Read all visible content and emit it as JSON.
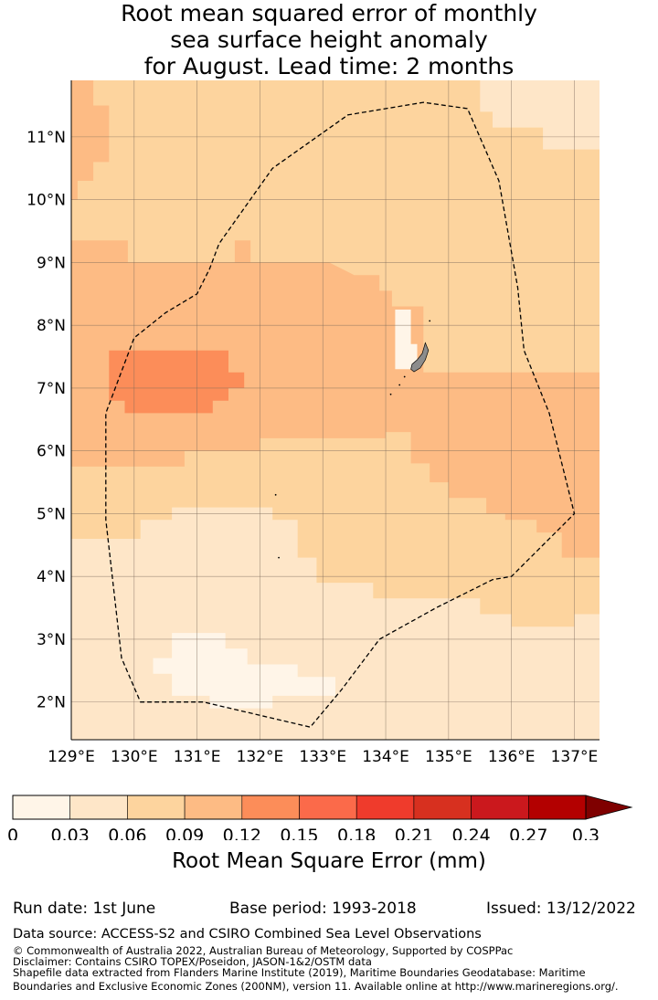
{
  "title_lines": [
    "Root mean squared error of monthly",
    "sea surface height anomaly",
    "for August. Lead time: 2 months"
  ],
  "map": {
    "lon_range": [
      129.0,
      137.4
    ],
    "lat_range": [
      1.4,
      11.9
    ],
    "lon_ticks": [
      {
        "value": 129,
        "label": "129°E"
      },
      {
        "value": 130,
        "label": "130°E"
      },
      {
        "value": 131,
        "label": "131°E"
      },
      {
        "value": 132,
        "label": "132°E"
      },
      {
        "value": 133,
        "label": "133°E"
      },
      {
        "value": 134,
        "label": "134°E"
      },
      {
        "value": 135,
        "label": "135°E"
      },
      {
        "value": 136,
        "label": "136°E"
      },
      {
        "value": 137,
        "label": "137°E"
      }
    ],
    "lat_ticks": [
      {
        "value": 11,
        "label": "11°N"
      },
      {
        "value": 10,
        "label": "10°N"
      },
      {
        "value": 9,
        "label": "9°N"
      },
      {
        "value": 8,
        "label": "8°N"
      },
      {
        "value": 7,
        "label": "7°N"
      },
      {
        "value": 6,
        "label": "6°N"
      },
      {
        "value": 5,
        "label": "5°N"
      },
      {
        "value": 4,
        "label": "4°N"
      },
      {
        "value": 3,
        "label": "3°N"
      },
      {
        "value": 2,
        "label": "2°N"
      }
    ],
    "grid": true,
    "eez_boundary": [
      [
        135.3,
        11.45
      ],
      [
        134.6,
        11.55
      ],
      [
        133.4,
        11.35
      ],
      [
        132.2,
        10.5
      ],
      [
        131.35,
        9.3
      ],
      [
        131.2,
        8.9
      ],
      [
        131.0,
        8.5
      ],
      [
        130.5,
        8.2
      ],
      [
        130.0,
        7.8
      ],
      [
        129.55,
        6.6
      ],
      [
        129.55,
        4.9
      ],
      [
        129.8,
        2.7
      ],
      [
        130.1,
        2.0
      ],
      [
        131.1,
        2.0
      ],
      [
        132.8,
        1.6
      ],
      [
        133.3,
        2.2
      ],
      [
        133.9,
        3.0
      ],
      [
        134.8,
        3.5
      ],
      [
        135.7,
        3.95
      ],
      [
        136.0,
        4.0
      ],
      [
        137.0,
        5.0
      ],
      [
        136.6,
        6.6
      ],
      [
        136.2,
        7.6
      ],
      [
        136.1,
        8.6
      ],
      [
        135.8,
        10.3
      ],
      [
        135.3,
        11.45
      ]
    ],
    "land_color": "#8c8c8c",
    "field_regions": [
      {
        "level": 2,
        "poly": [
          [
            129.0,
            11.9
          ],
          [
            137.4,
            11.9
          ],
          [
            137.4,
            1.4
          ],
          [
            129.0,
            1.4
          ]
        ]
      },
      {
        "level": 3,
        "poly": [
          [
            129.0,
            11.9
          ],
          [
            129.35,
            11.9
          ],
          [
            129.35,
            11.5
          ],
          [
            129.6,
            11.5
          ],
          [
            129.6,
            10.6
          ],
          [
            129.35,
            10.6
          ],
          [
            129.35,
            10.3
          ],
          [
            129.1,
            10.3
          ],
          [
            129.1,
            10.0
          ],
          [
            129.0,
            10.0
          ]
        ]
      },
      {
        "level": 3,
        "poly": [
          [
            129.0,
            9.35
          ],
          [
            129.9,
            9.35
          ],
          [
            129.9,
            9.0
          ],
          [
            131.6,
            9.0
          ],
          [
            131.6,
            9.35
          ],
          [
            131.85,
            9.35
          ],
          [
            131.85,
            9.0
          ],
          [
            133.1,
            9.0
          ],
          [
            133.5,
            8.8
          ],
          [
            133.9,
            8.8
          ],
          [
            133.9,
            8.55
          ],
          [
            134.1,
            8.55
          ],
          [
            134.1,
            8.3
          ],
          [
            134.6,
            8.3
          ],
          [
            134.6,
            7.25
          ],
          [
            137.4,
            7.25
          ],
          [
            137.4,
            4.3
          ],
          [
            136.8,
            4.3
          ],
          [
            136.8,
            4.7
          ],
          [
            136.4,
            4.7
          ],
          [
            136.4,
            4.9
          ],
          [
            135.9,
            4.9
          ],
          [
            135.9,
            5.0
          ],
          [
            135.6,
            5.0
          ],
          [
            135.6,
            5.25
          ],
          [
            135.0,
            5.25
          ],
          [
            135.0,
            5.5
          ],
          [
            134.7,
            5.5
          ],
          [
            134.7,
            5.8
          ],
          [
            134.4,
            5.8
          ],
          [
            134.4,
            6.3
          ],
          [
            134.0,
            6.3
          ],
          [
            134.0,
            6.2
          ],
          [
            132.0,
            6.2
          ],
          [
            132.0,
            6.0
          ],
          [
            130.8,
            6.0
          ],
          [
            130.8,
            5.75
          ],
          [
            129.0,
            5.75
          ]
        ]
      },
      {
        "level": 4,
        "poly": [
          [
            129.6,
            7.6
          ],
          [
            131.5,
            7.6
          ],
          [
            131.5,
            7.25
          ],
          [
            131.75,
            7.25
          ],
          [
            131.75,
            7.0
          ],
          [
            131.5,
            7.0
          ],
          [
            131.5,
            6.8
          ],
          [
            131.25,
            6.8
          ],
          [
            131.25,
            6.6
          ],
          [
            129.85,
            6.6
          ],
          [
            129.85,
            6.8
          ],
          [
            129.6,
            6.8
          ]
        ]
      },
      {
        "level": 1,
        "poly": [
          [
            129.0,
            4.6
          ],
          [
            129.0,
            1.4
          ],
          [
            137.4,
            1.4
          ],
          [
            137.4,
            3.4
          ],
          [
            137.0,
            3.4
          ],
          [
            137.0,
            3.2
          ],
          [
            136.0,
            3.2
          ],
          [
            136.0,
            3.4
          ],
          [
            135.5,
            3.4
          ],
          [
            135.5,
            3.65
          ],
          [
            133.8,
            3.65
          ],
          [
            133.8,
            3.9
          ],
          [
            132.9,
            3.9
          ],
          [
            132.9,
            4.3
          ],
          [
            132.6,
            4.3
          ],
          [
            132.6,
            4.9
          ],
          [
            132.2,
            4.9
          ],
          [
            132.2,
            5.1
          ],
          [
            130.6,
            5.1
          ],
          [
            130.6,
            4.9
          ],
          [
            130.1,
            4.9
          ],
          [
            130.1,
            4.6
          ]
        ]
      },
      {
        "level": 1,
        "poly": [
          [
            135.5,
            11.9
          ],
          [
            137.4,
            11.9
          ],
          [
            137.4,
            10.8
          ],
          [
            136.5,
            10.8
          ],
          [
            136.5,
            11.15
          ],
          [
            135.7,
            11.15
          ],
          [
            135.7,
            11.4
          ],
          [
            135.5,
            11.4
          ]
        ]
      },
      {
        "level": 0,
        "poly": [
          [
            130.6,
            3.1
          ],
          [
            131.45,
            3.1
          ],
          [
            131.45,
            2.85
          ],
          [
            131.8,
            2.85
          ],
          [
            131.8,
            2.6
          ],
          [
            132.6,
            2.6
          ],
          [
            132.6,
            2.4
          ],
          [
            133.2,
            2.4
          ],
          [
            133.2,
            2.1
          ],
          [
            132.2,
            2.1
          ],
          [
            132.2,
            1.9
          ],
          [
            131.2,
            1.9
          ],
          [
            131.2,
            2.1
          ],
          [
            130.6,
            2.1
          ],
          [
            130.6,
            2.45
          ],
          [
            130.3,
            2.45
          ],
          [
            130.3,
            2.7
          ],
          [
            130.6,
            2.7
          ]
        ]
      },
      {
        "level": 0,
        "poly": [
          [
            134.15,
            8.25
          ],
          [
            134.4,
            8.25
          ],
          [
            134.4,
            7.7
          ],
          [
            134.5,
            7.7
          ],
          [
            134.5,
            7.3
          ],
          [
            134.15,
            7.3
          ]
        ]
      }
    ],
    "islands": [
      [
        [
          134.63,
          7.72
        ],
        [
          134.58,
          7.55
        ],
        [
          134.5,
          7.45
        ],
        [
          134.42,
          7.38
        ],
        [
          134.4,
          7.3
        ],
        [
          134.45,
          7.26
        ],
        [
          134.55,
          7.32
        ],
        [
          134.63,
          7.45
        ],
        [
          134.68,
          7.6
        ]
      ]
    ]
  },
  "colorbar": {
    "levels": [
      "#fff5e8",
      "#fee6c8",
      "#fdd49e",
      "#fdbb84",
      "#fc8d59",
      "#fb6a4a",
      "#ef3b2c",
      "#d7301f",
      "#cb181d",
      "#b30000"
    ],
    "extend_color": "#7f0000",
    "tick_labels": [
      "0",
      "0.03",
      "0.06",
      "0.09",
      "0.12",
      "0.15",
      "0.18",
      "0.21",
      "0.24",
      "0.27",
      "0.3"
    ],
    "label": "Root Mean Square Error (mm)"
  },
  "footer": {
    "run_date": "Run date: 1st June",
    "base_period": "Base period: 1993-2018",
    "issued": "Issued: 13/12/2022",
    "data_source": "Data source: ACCESS-S2 and CSIRO Combined Sea Level Observations",
    "copyright": "© Commonwealth of Australia 2022, Australian Bureau of Meteorology, Supported by COSPPac",
    "disclaimer": "Disclaimer: Contains CSIRO TOPEX/Poseidon, JASON-1&2/OSTM data",
    "shapefile_1": "Shapefile data extracted from Flanders Marine Institute (2019), Maritime Boundaries Geodatabase: Maritime",
    "shapefile_2": "Boundaries and Exclusive Economic Zones (200NM), version 11. Available online at http://www.marineregions.org/."
  }
}
